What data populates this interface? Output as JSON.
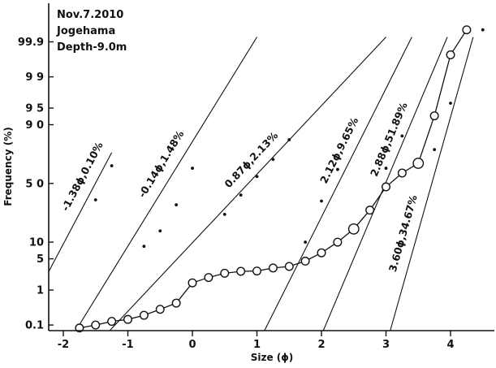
{
  "chart_data": {
    "type": "line",
    "title": "",
    "info": [
      "Nov.7.2010",
      "Jogehama",
      "Depth-9.0m"
    ],
    "xlabel": "Size (ϕ)",
    "ylabel": "Frequency (%)",
    "scale": "probability",
    "xlim": [
      -2.3,
      4.65
    ],
    "ylim": [
      0.03,
      99.98
    ],
    "x_ticks": [
      -2,
      -1,
      0,
      1,
      2,
      3,
      4
    ],
    "x_tick_labels": [
      "-2",
      "-1",
      "0",
      "1",
      "2",
      "3",
      "4"
    ],
    "y_ticks": [
      0.1,
      1,
      5,
      10,
      50,
      90,
      95,
      99,
      99.9
    ],
    "y_tick_labels": [
      "0.1",
      "1",
      "5",
      "10",
      "5 0",
      "9 0",
      "9 5",
      "9 9",
      "99.9"
    ],
    "grid": false,
    "legend": "none",
    "series": [
      {
        "marker": "open-circle",
        "x": [
          -1.75,
          -1.5,
          -1.25,
          -1.0,
          -0.75,
          -0.5,
          -0.25,
          0.0,
          0.25,
          0.5,
          0.75,
          1.0,
          1.25,
          1.5,
          1.75,
          2.0,
          2.25,
          2.5,
          2.75,
          3.0,
          3.25,
          3.5,
          3.75,
          4.0,
          4.25
        ],
        "y": [
          0.08,
          0.1,
          0.13,
          0.15,
          0.2,
          0.3,
          0.45,
          1.5,
          2.0,
          2.5,
          2.75,
          2.8,
          3.25,
          3.5,
          4.5,
          6.5,
          10.0,
          16.0,
          28.0,
          47.0,
          59.0,
          67.0,
          93.0,
          99.75,
          99.96
        ]
      }
    ],
    "component_lines": [
      {
        "label": "-1.38ϕ,0.10%",
        "x": [
          -2.5,
          -1.25
        ],
        "y": [
          0.4,
          75.0
        ],
        "dots_x": [
          -1.5,
          -1.25
        ],
        "dots_y": [
          36.0,
          65.0
        ]
      },
      {
        "label": "-0.14ϕ,1.48%",
        "x": [
          -2.0,
          1.0
        ],
        "y": [
          0.013,
          99.93
        ],
        "dots_x": [
          -0.75,
          -0.5,
          -0.25,
          0.0
        ],
        "dots_y": [
          8.5,
          15.0,
          32.0,
          63.0
        ]
      },
      {
        "label": "0.87ϕ,2.13%",
        "x": [
          -1.5,
          3.0
        ],
        "y": [
          0.02,
          99.93
        ],
        "dots_x": [
          0.5,
          0.75,
          1.0,
          1.25,
          1.5
        ],
        "dots_y": [
          25.0,
          40.0,
          56.0,
          70.0,
          83.0
        ]
      },
      {
        "label": "2.12ϕ,9.65%",
        "x": [
          1.0,
          3.4
        ],
        "y": [
          0.02,
          99.93
        ],
        "dots_x": [
          1.75,
          2.0,
          2.25
        ],
        "dots_y": [
          10.0,
          35.0,
          62.0
        ]
      },
      {
        "label": "2.88ϕ,51.89%",
        "x": [
          1.93,
          3.95
        ],
        "y": [
          0.02,
          99.93
        ],
        "dots_x": [
          2.75,
          3.0,
          3.25
        ],
        "dots_y": [
          30.0,
          63.0,
          85.0
        ]
      },
      {
        "label": "3.60ϕ,34.67%",
        "x": [
          3.0,
          4.35
        ],
        "y": [
          0.02,
          99.93
        ],
        "dots_x": [
          3.75,
          4.0,
          4.5
        ],
        "dots_y": [
          77.0,
          96.0,
          99.96
        ]
      }
    ]
  }
}
